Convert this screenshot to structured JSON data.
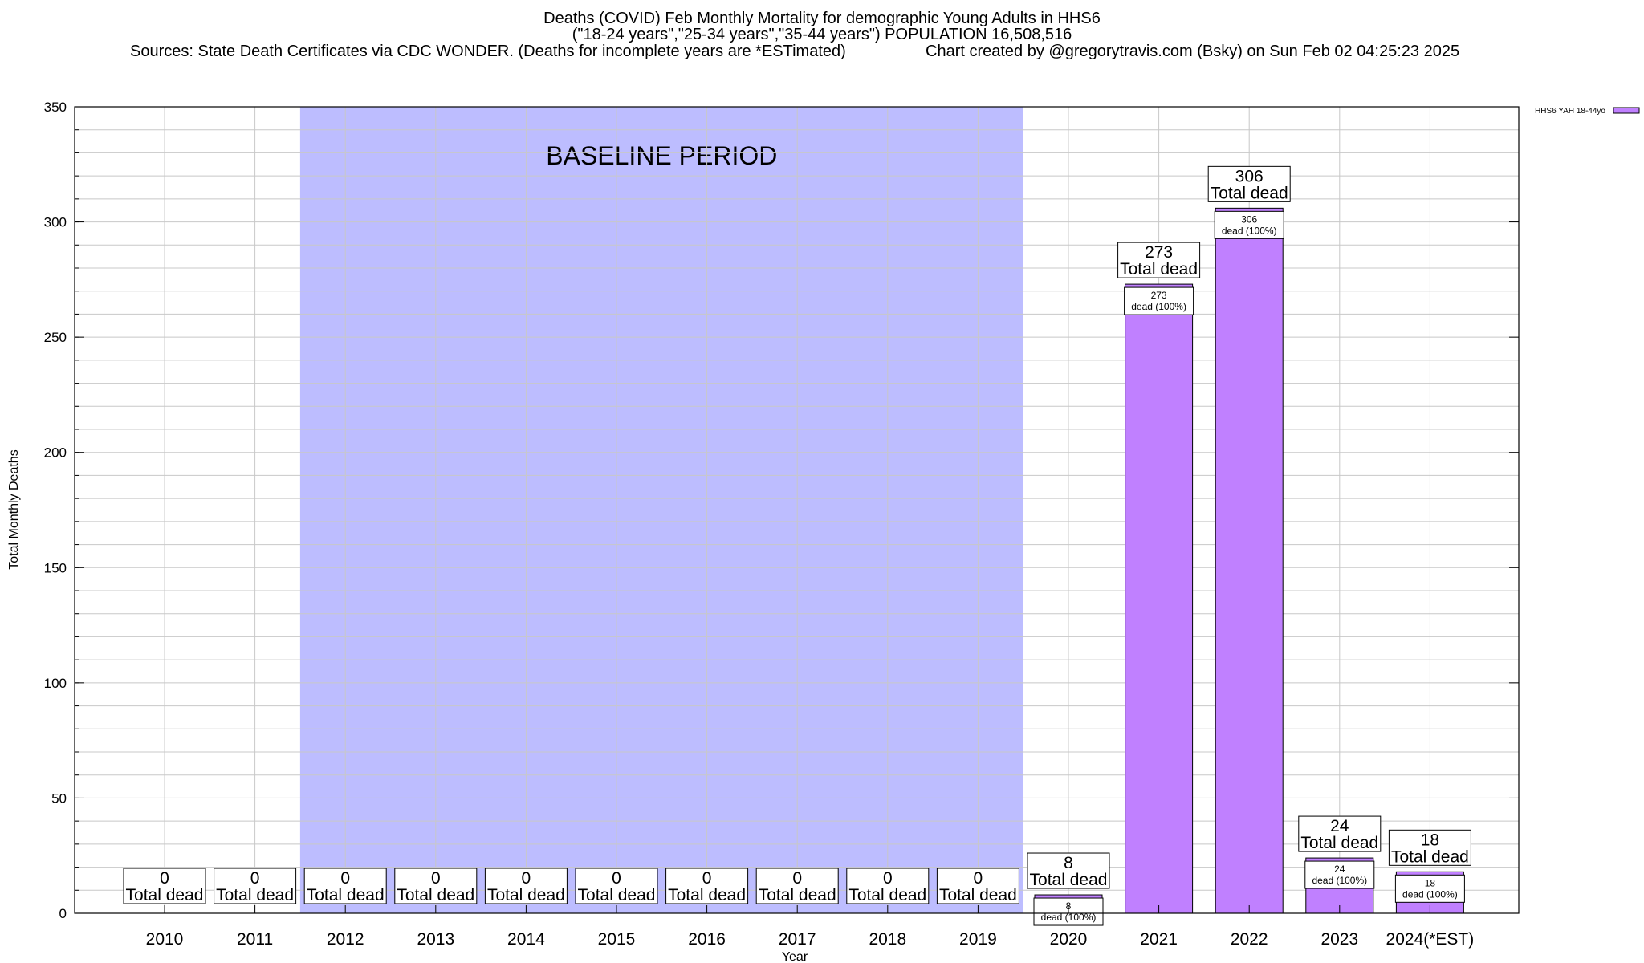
{
  "title_lines": [
    "Deaths (COVID) Feb Monthly Mortality for demographic Young Adults in HHS6",
    "(\"18-24 years\",\"25-34 years\",\"35-44 years\") POPULATION 16,508,516"
  ],
  "sources": "Sources: State Death Certificates via CDC WONDER. (Deaths for incomplete years are *ESTimated)",
  "credit": "Chart created by @gregorytravis.com (Bsky) on Sun Feb 02 04:25:23 2025",
  "baseline_label": "BASELINE PERIOD",
  "legend_label": "HHS6 YAH 18-44yo",
  "colors": {
    "bar": "#c080ff",
    "baseline": "#bdbdff",
    "grid": "#c8c8c8"
  },
  "chart_data": {
    "type": "bar",
    "xlabel": "Year",
    "ylabel": "Total Monthly Deaths",
    "ylim": [
      0,
      350
    ],
    "yticks": [
      0,
      50,
      100,
      150,
      200,
      250,
      300,
      350
    ],
    "grid": true,
    "legend_position": "top-right",
    "baseline_period": [
      "2012",
      "2019"
    ],
    "categories": [
      "2010",
      "2011",
      "2012",
      "2013",
      "2014",
      "2015",
      "2016",
      "2017",
      "2018",
      "2019",
      "2020",
      "2021",
      "2022",
      "2023",
      "2024(*EST)"
    ],
    "series": [
      {
        "name": "HHS6 YAH 18-44yo",
        "values": [
          0,
          0,
          0,
          0,
          0,
          0,
          0,
          0,
          0,
          0,
          8,
          273,
          306,
          24,
          18
        ]
      }
    ],
    "total_label": "Total dead",
    "inner_label": "dead (100%)"
  }
}
